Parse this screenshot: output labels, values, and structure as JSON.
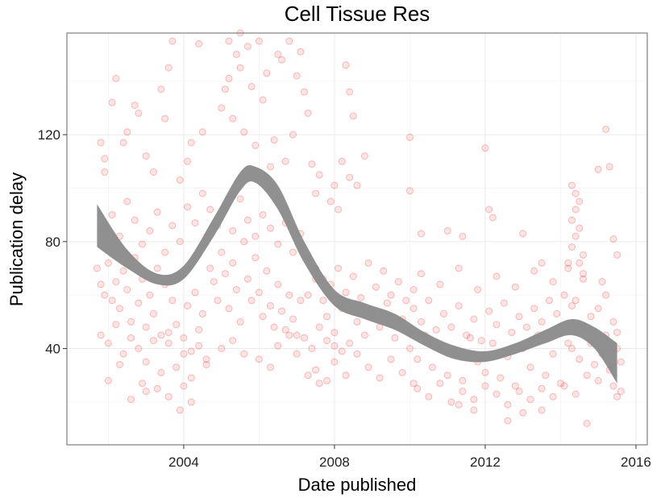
{
  "chart_data": {
    "type": "scatter",
    "title": "Cell Tissue Res",
    "xlabel": "Date published",
    "ylabel": "Publication delay",
    "xlim": [
      2000.9,
      2016.3
    ],
    "ylim": [
      4,
      158
    ],
    "x_ticks": [
      2004,
      2008,
      2012,
      2016
    ],
    "y_ticks": [
      40,
      80,
      120
    ],
    "grid": true,
    "legend": "none",
    "point_color": "#ff0000",
    "smooth_color": "#8a8a8a",
    "smooth": {
      "x": [
        2001.7,
        2002.5,
        2003.3,
        2004.0,
        2004.8,
        2005.5,
        2005.9,
        2006.5,
        2007.2,
        2008.0,
        2008.8,
        2009.6,
        2010.4,
        2011.2,
        2012.0,
        2012.8,
        2013.6,
        2014.3,
        2014.9,
        2015.5
      ],
      "lower": [
        78,
        70,
        64,
        66,
        82,
        99,
        102,
        92,
        72,
        56,
        51,
        47,
        41,
        36,
        35,
        38,
        42,
        45,
        40,
        27
      ],
      "upper": [
        94,
        77,
        68,
        71,
        89,
        106,
        108,
        101,
        80,
        62,
        57,
        53,
        46,
        41,
        39,
        42,
        47,
        51,
        48,
        42
      ]
    },
    "points": [
      [
        2001.8,
        117
      ],
      [
        2001.9,
        111
      ],
      [
        2001.9,
        106
      ],
      [
        2002.1,
        132
      ],
      [
        2002.2,
        141
      ],
      [
        2002.4,
        117
      ],
      [
        2002.5,
        121
      ],
      [
        2002.7,
        131
      ],
      [
        2002.8,
        128
      ],
      [
        2003.0,
        112
      ],
      [
        2003.2,
        106
      ],
      [
        2003.4,
        137
      ],
      [
        2003.5,
        126
      ],
      [
        2003.6,
        145
      ],
      [
        2003.7,
        155
      ],
      [
        2004.2,
        117
      ],
      [
        2004.4,
        154
      ],
      [
        2004.5,
        121
      ],
      [
        2004.1,
        110
      ],
      [
        2003.9,
        103
      ],
      [
        2002.0,
        28
      ],
      [
        2002.3,
        34
      ],
      [
        2002.6,
        21
      ],
      [
        2003.0,
        24
      ],
      [
        2003.3,
        25
      ],
      [
        2003.9,
        17
      ],
      [
        2004.2,
        20
      ],
      [
        2004.0,
        26
      ],
      [
        2003.6,
        22
      ],
      [
        2002.9,
        27
      ],
      [
        2005.0,
        159
      ],
      [
        2005.2,
        155
      ],
      [
        2005.4,
        150
      ],
      [
        2005.5,
        158
      ],
      [
        2005.7,
        153
      ],
      [
        2005.8,
        138
      ],
      [
        2005.0,
        130
      ],
      [
        2005.2,
        141
      ],
      [
        2005.5,
        145
      ],
      [
        2005.1,
        137
      ],
      [
        2005.3,
        126
      ],
      [
        2005.6,
        121
      ],
      [
        2005.9,
        116
      ],
      [
        2006.0,
        155
      ],
      [
        2006.1,
        133
      ],
      [
        2006.2,
        143
      ],
      [
        2006.4,
        118
      ],
      [
        2006.5,
        150
      ],
      [
        2006.6,
        148
      ],
      [
        2006.8,
        155
      ],
      [
        2007.0,
        142
      ],
      [
        2007.1,
        151
      ],
      [
        2007.2,
        136
      ],
      [
        2007.3,
        128
      ],
      [
        2006.9,
        120
      ],
      [
        2007.4,
        109
      ],
      [
        2007.5,
        98
      ],
      [
        2007.6,
        105
      ],
      [
        2006.7,
        110
      ],
      [
        2006.3,
        108
      ],
      [
        2005.0,
        40
      ],
      [
        2005.3,
        43
      ],
      [
        2005.6,
        38
      ],
      [
        2006.0,
        36
      ],
      [
        2006.3,
        33
      ],
      [
        2006.5,
        41
      ],
      [
        2006.8,
        45
      ],
      [
        2007.0,
        38
      ],
      [
        2007.3,
        30
      ],
      [
        2007.6,
        27
      ],
      [
        2007.8,
        43
      ],
      [
        2008.0,
        41
      ],
      [
        2008.2,
        39
      ],
      [
        2008.4,
        136
      ],
      [
        2008.5,
        127
      ],
      [
        2008.3,
        146
      ],
      [
        2008.2,
        110
      ],
      [
        2008.4,
        104
      ],
      [
        2008.6,
        101
      ],
      [
        2008.8,
        112
      ],
      [
        2008.0,
        101
      ],
      [
        2008.1,
        92
      ],
      [
        2007.9,
        95
      ],
      [
        2010.0,
        99
      ],
      [
        2010.0,
        119
      ],
      [
        2010.3,
        83
      ],
      [
        2011.0,
        84
      ],
      [
        2011.4,
        82
      ],
      [
        2012.0,
        115
      ],
      [
        2012.1,
        92
      ],
      [
        2012.2,
        89
      ],
      [
        2013.0,
        83
      ],
      [
        2013.5,
        72
      ],
      [
        2014.3,
        101
      ],
      [
        2014.4,
        98
      ],
      [
        2014.5,
        95
      ],
      [
        2014.4,
        92
      ],
      [
        2014.3,
        88
      ],
      [
        2014.5,
        85
      ],
      [
        2014.4,
        82
      ],
      [
        2014.3,
        78
      ],
      [
        2014.6,
        75
      ],
      [
        2014.5,
        72
      ],
      [
        2014.2,
        70
      ],
      [
        2014.6,
        68
      ],
      [
        2015.2,
        122
      ],
      [
        2015.0,
        107
      ],
      [
        2015.3,
        108
      ],
      [
        2015.4,
        81
      ],
      [
        2015.5,
        75
      ],
      [
        2014.7,
        12
      ],
      [
        2013.5,
        17
      ],
      [
        2012.6,
        13
      ],
      [
        2013.0,
        16
      ],
      [
        2011.7,
        17
      ],
      [
        2011.3,
        19
      ],
      [
        2015.5,
        22
      ],
      [
        2015.6,
        24
      ],
      [
        2001.7,
        70
      ],
      [
        2001.8,
        64
      ],
      [
        2001.9,
        60
      ],
      [
        2002.0,
        72
      ],
      [
        2002.1,
        58
      ],
      [
        2002.2,
        65
      ],
      [
        2002.3,
        55
      ],
      [
        2002.4,
        69
      ],
      [
        2002.5,
        62
      ],
      [
        2002.6,
        50
      ],
      [
        2002.7,
        74
      ],
      [
        2002.8,
        57
      ],
      [
        2002.9,
        66
      ],
      [
        2003.0,
        48
      ],
      [
        2003.1,
        60
      ],
      [
        2003.2,
        53
      ],
      [
        2003.3,
        70
      ],
      [
        2003.4,
        45
      ],
      [
        2003.5,
        64
      ],
      [
        2003.6,
        42
      ],
      [
        2003.7,
        58
      ],
      [
        2003.8,
        49
      ],
      [
        2003.9,
        67
      ],
      [
        2004.0,
        44
      ],
      [
        2004.1,
        56
      ],
      [
        2004.2,
        39
      ],
      [
        2004.3,
        61
      ],
      [
        2004.4,
        47
      ],
      [
        2004.5,
        53
      ],
      [
        2004.6,
        36
      ],
      [
        2001.8,
        45
      ],
      [
        2002.0,
        42
      ],
      [
        2002.2,
        49
      ],
      [
        2002.4,
        38
      ],
      [
        2002.6,
        44
      ],
      [
        2002.8,
        40
      ],
      [
        2003.0,
        35
      ],
      [
        2003.2,
        43
      ],
      [
        2003.4,
        31
      ],
      [
        2003.6,
        46
      ],
      [
        2003.8,
        33
      ],
      [
        2004.0,
        38
      ],
      [
        2004.2,
        29
      ],
      [
        2004.4,
        41
      ],
      [
        2004.6,
        34
      ],
      [
        2001.9,
        85
      ],
      [
        2002.1,
        90
      ],
      [
        2002.3,
        82
      ],
      [
        2002.5,
        95
      ],
      [
        2002.7,
        88
      ],
      [
        2002.9,
        79
      ],
      [
        2003.1,
        84
      ],
      [
        2003.3,
        91
      ],
      [
        2003.5,
        76
      ],
      [
        2003.7,
        86
      ],
      [
        2003.9,
        80
      ],
      [
        2004.1,
        93
      ],
      [
        2004.3,
        87
      ],
      [
        2004.5,
        98
      ],
      [
        2004.7,
        92
      ],
      [
        2004.7,
        70
      ],
      [
        2004.8,
        65
      ],
      [
        2004.9,
        58
      ],
      [
        2005.0,
        76
      ],
      [
        2005.1,
        68
      ],
      [
        2005.2,
        55
      ],
      [
        2005.3,
        72
      ],
      [
        2005.4,
        62
      ],
      [
        2005.5,
        50
      ],
      [
        2005.6,
        80
      ],
      [
        2005.7,
        66
      ],
      [
        2005.8,
        58
      ],
      [
        2005.9,
        74
      ],
      [
        2006.0,
        61
      ],
      [
        2006.1,
        52
      ],
      [
        2006.2,
        69
      ],
      [
        2006.3,
        56
      ],
      [
        2006.4,
        48
      ],
      [
        2006.5,
        64
      ],
      [
        2006.6,
        54
      ],
      [
        2006.7,
        47
      ],
      [
        2006.8,
        60
      ],
      [
        2006.9,
        51
      ],
      [
        2007.0,
        45
      ],
      [
        2007.1,
        58
      ],
      [
        2004.9,
        86
      ],
      [
        2005.1,
        92
      ],
      [
        2005.3,
        84
      ],
      [
        2005.5,
        96
      ],
      [
        2005.7,
        88
      ],
      [
        2005.9,
        82
      ],
      [
        2006.1,
        90
      ],
      [
        2006.3,
        85
      ],
      [
        2006.5,
        79
      ],
      [
        2006.7,
        87
      ],
      [
        2006.9,
        76
      ],
      [
        2007.1,
        83
      ],
      [
        2007.3,
        74
      ],
      [
        2007.5,
        70
      ],
      [
        2007.7,
        66
      ],
      [
        2007.2,
        44
      ],
      [
        2007.4,
        40
      ],
      [
        2007.6,
        48
      ],
      [
        2007.8,
        52
      ],
      [
        2008.0,
        46
      ],
      [
        2008.2,
        55
      ],
      [
        2008.4,
        42
      ],
      [
        2008.6,
        50
      ],
      [
        2008.8,
        45
      ],
      [
        2009.0,
        53
      ],
      [
        2009.2,
        48
      ],
      [
        2009.4,
        57
      ],
      [
        2009.6,
        44
      ],
      [
        2009.8,
        51
      ],
      [
        2010.0,
        46
      ],
      [
        2007.3,
        60
      ],
      [
        2007.5,
        66
      ],
      [
        2007.7,
        58
      ],
      [
        2007.9,
        64
      ],
      [
        2008.1,
        70
      ],
      [
        2008.3,
        61
      ],
      [
        2008.5,
        67
      ],
      [
        2008.7,
        59
      ],
      [
        2008.9,
        72
      ],
      [
        2009.1,
        63
      ],
      [
        2009.3,
        69
      ],
      [
        2009.5,
        60
      ],
      [
        2009.7,
        65
      ],
      [
        2009.9,
        58
      ],
      [
        2010.1,
        62
      ],
      [
        2007.5,
        32
      ],
      [
        2007.8,
        28
      ],
      [
        2008.0,
        35
      ],
      [
        2008.3,
        30
      ],
      [
        2008.6,
        38
      ],
      [
        2008.9,
        33
      ],
      [
        2009.2,
        29
      ],
      [
        2009.5,
        36
      ],
      [
        2009.8,
        31
      ],
      [
        2010.1,
        27
      ],
      [
        2010.0,
        40
      ],
      [
        2010.2,
        36
      ],
      [
        2010.4,
        45
      ],
      [
        2010.6,
        33
      ],
      [
        2010.8,
        41
      ],
      [
        2011.0,
        30
      ],
      [
        2011.2,
        38
      ],
      [
        2011.4,
        28
      ],
      [
        2011.6,
        44
      ],
      [
        2011.8,
        35
      ],
      [
        2012.0,
        31
      ],
      [
        2012.2,
        42
      ],
      [
        2012.4,
        29
      ],
      [
        2012.6,
        37
      ],
      [
        2012.8,
        26
      ],
      [
        2013.0,
        40
      ],
      [
        2013.2,
        33
      ],
      [
        2013.4,
        45
      ],
      [
        2013.6,
        30
      ],
      [
        2013.8,
        38
      ],
      [
        2014.0,
        27
      ],
      [
        2014.2,
        42
      ],
      [
        2010.1,
        55
      ],
      [
        2010.3,
        50
      ],
      [
        2010.5,
        58
      ],
      [
        2010.7,
        47
      ],
      [
        2010.9,
        53
      ],
      [
        2011.1,
        48
      ],
      [
        2011.3,
        56
      ],
      [
        2011.5,
        45
      ],
      [
        2011.7,
        51
      ],
      [
        2011.9,
        43
      ],
      [
        2012.1,
        54
      ],
      [
        2012.3,
        49
      ],
      [
        2012.5,
        57
      ],
      [
        2012.7,
        46
      ],
      [
        2012.9,
        52
      ],
      [
        2013.1,
        48
      ],
      [
        2013.3,
        55
      ],
      [
        2013.5,
        50
      ],
      [
        2013.7,
        58
      ],
      [
        2013.9,
        53
      ],
      [
        2014.1,
        60
      ],
      [
        2014.3,
        56
      ],
      [
        2010.2,
        25
      ],
      [
        2010.5,
        22
      ],
      [
        2010.8,
        27
      ],
      [
        2011.1,
        20
      ],
      [
        2011.4,
        24
      ],
      [
        2011.7,
        21
      ],
      [
        2012.0,
        26
      ],
      [
        2012.3,
        23
      ],
      [
        2012.6,
        19
      ],
      [
        2012.9,
        24
      ],
      [
        2013.2,
        21
      ],
      [
        2013.5,
        25
      ],
      [
        2013.8,
        22
      ],
      [
        2014.1,
        26
      ],
      [
        2014.4,
        23
      ],
      [
        2010.3,
        68
      ],
      [
        2010.8,
        64
      ],
      [
        2011.3,
        70
      ],
      [
        2011.8,
        62
      ],
      [
        2012.3,
        67
      ],
      [
        2012.8,
        63
      ],
      [
        2013.3,
        69
      ],
      [
        2013.8,
        65
      ],
      [
        2014.2,
        72
      ],
      [
        2014.6,
        66
      ],
      [
        2014.3,
        40
      ],
      [
        2014.5,
        36
      ],
      [
        2014.7,
        30
      ],
      [
        2014.8,
        42
      ],
      [
        2014.9,
        34
      ],
      [
        2015.0,
        28
      ],
      [
        2015.1,
        38
      ],
      [
        2015.2,
        45
      ],
      [
        2015.3,
        32
      ],
      [
        2015.4,
        26
      ],
      [
        2015.5,
        40
      ],
      [
        2015.6,
        35
      ],
      [
        2014.6,
        48
      ],
      [
        2014.8,
        52
      ],
      [
        2015.0,
        55
      ],
      [
        2015.2,
        60
      ],
      [
        2015.4,
        50
      ],
      [
        2015.5,
        46
      ],
      [
        2014.4,
        58
      ],
      [
        2015.1,
        65
      ]
    ]
  }
}
